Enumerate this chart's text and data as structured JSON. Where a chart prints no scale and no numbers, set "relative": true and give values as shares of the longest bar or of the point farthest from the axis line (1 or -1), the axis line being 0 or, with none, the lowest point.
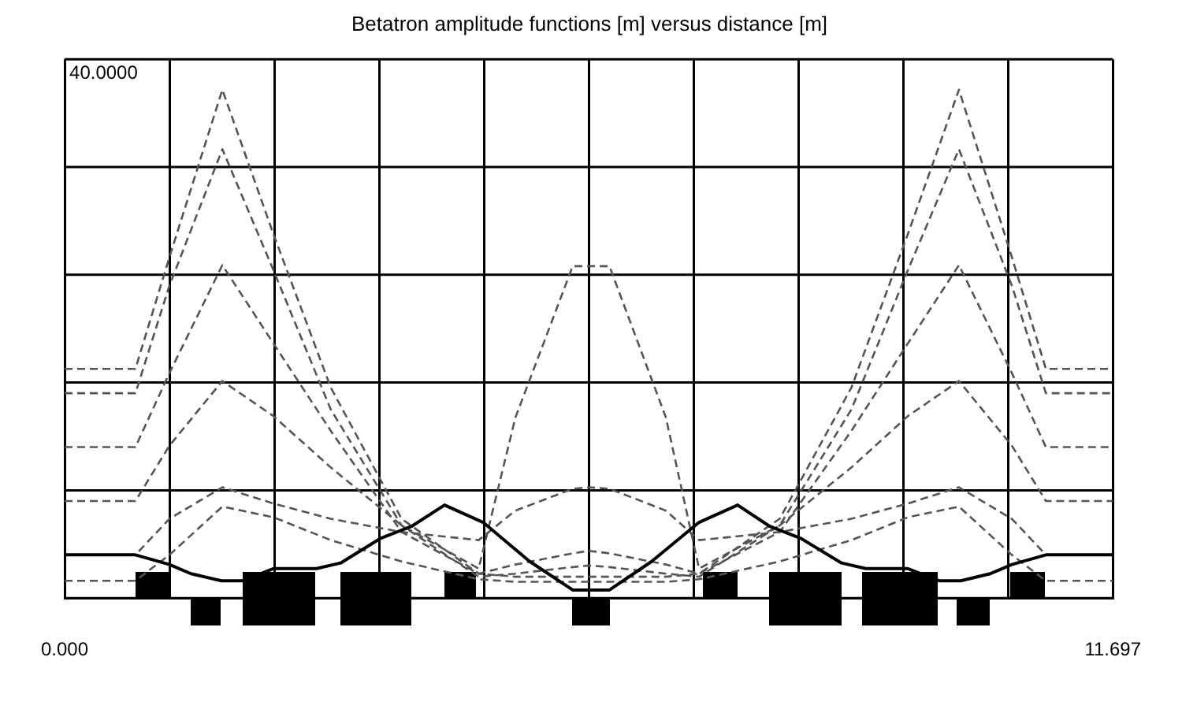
{
  "chart_data": {
    "type": "line",
    "title": "Betatron amplitude functions [m] versus distance [m]",
    "annotations": [
      "40.0000"
    ],
    "relative": true,
    "xlim": [
      0,
      11.697
    ],
    "xticks": [
      {
        "value": 0,
        "label": "0.000"
      },
      {
        "value": 1.1697,
        "label": null
      },
      {
        "value": 2.3394,
        "label": null
      },
      {
        "value": 3.5091,
        "label": null
      },
      {
        "value": 4.6788,
        "label": null
      },
      {
        "value": 5.8485,
        "label": null
      },
      {
        "value": 7.0182,
        "label": null
      },
      {
        "value": 8.1879,
        "label": null
      },
      {
        "value": 9.3576,
        "label": null
      },
      {
        "value": 10.5273,
        "label": null
      },
      {
        "value": 11.697,
        "label": "11.697"
      }
    ],
    "grid": true,
    "legend": false,
    "marker": "none",
    "series": [
      {
        "color": "#000000",
        "line_style": "solid",
        "x": [
          0,
          0.79,
          1.17,
          1.41,
          1.75,
          1.98,
          2.33,
          2.81,
          3.08,
          3.52,
          3.87,
          4.24,
          4.67,
          5.19,
          5.67,
          6.08,
          6.55,
          7.08,
          7.51,
          7.87,
          8.22,
          8.67,
          8.94,
          9.41,
          9.76,
          10.0,
          10.33,
          10.57,
          10.95,
          11.697
        ],
        "values": [
          0.085,
          0.085,
          0.066,
          0.048,
          0.034,
          0.034,
          0.058,
          0.058,
          0.069,
          0.117,
          0.141,
          0.183,
          0.149,
          0.072,
          0.016,
          0.016,
          0.072,
          0.149,
          0.183,
          0.141,
          0.117,
          0.069,
          0.058,
          0.058,
          0.034,
          0.034,
          0.048,
          0.066,
          0.085,
          0.085
        ]
      },
      {
        "color": "#555555",
        "line_style": "dashed",
        "x": [
          0,
          0.79,
          1.17,
          1.76,
          2.33,
          2.97,
          3.76,
          4.62,
          5.03,
          5.67,
          5.85,
          6.08,
          6.71,
          7.08,
          7.98,
          8.78,
          9.41,
          9.98,
          10.57,
          10.95,
          11.697
        ],
        "values": [
          0.451,
          0.451,
          0.671,
          1,
          0.716,
          0.414,
          0.156,
          0.048,
          0.042,
          0.042,
          0.042,
          0.042,
          0.042,
          0.048,
          0.156,
          0.414,
          0.716,
          1,
          0.671,
          0.451,
          0.451
        ]
      },
      {
        "color": "#555555",
        "line_style": "dashed",
        "x": [
          0,
          0.79,
          1.17,
          1.76,
          2.33,
          2.97,
          3.76,
          4.62,
          5.03,
          5.67,
          5.85,
          6.08,
          6.71,
          7.08,
          7.98,
          8.78,
          9.41,
          9.98,
          10.57,
          10.95,
          11.697
        ],
        "values": [
          0.403,
          0.403,
          0.615,
          0.883,
          0.645,
          0.371,
          0.143,
          0.042,
          0.048,
          0.061,
          0.064,
          0.061,
          0.048,
          0.042,
          0.143,
          0.371,
          0.645,
          0.883,
          0.615,
          0.403,
          0.403
        ]
      },
      {
        "color": "#555555",
        "line_style": "dashed",
        "x": [
          0,
          0.79,
          1.17,
          1.76,
          2.33,
          2.97,
          3.76,
          4.62,
          5.03,
          5.67,
          5.85,
          6.08,
          6.71,
          7.08,
          7.98,
          8.78,
          9.41,
          9.98,
          10.57,
          10.95,
          11.697
        ],
        "values": [
          0.297,
          0.297,
          0.443,
          0.655,
          0.501,
          0.329,
          0.13,
          0.048,
          0.066,
          0.088,
          0.093,
          0.088,
          0.066,
          0.048,
          0.13,
          0.329,
          0.501,
          0.655,
          0.443,
          0.297,
          0.297
        ]
      },
      {
        "color": "#555555",
        "line_style": "dashed",
        "x": [
          0,
          0.79,
          1.17,
          1.76,
          2.33,
          2.97,
          3.76,
          4.62,
          5.03,
          5.67,
          5.85,
          6.08,
          6.71,
          7.08,
          7.98,
          8.78,
          9.41,
          9.98,
          10.57,
          10.95,
          11.697
        ],
        "values": [
          0.191,
          0.191,
          0.3,
          0.427,
          0.358,
          0.257,
          0.143,
          0.058,
          0.355,
          0.653,
          0.653,
          0.653,
          0.355,
          0.058,
          0.143,
          0.257,
          0.358,
          0.427,
          0.3,
          0.191,
          0.191
        ]
      },
      {
        "color": "#555555",
        "line_style": "dashed",
        "x": [
          0,
          0.79,
          1.17,
          1.76,
          2.33,
          2.97,
          3.76,
          4.62,
          5.03,
          5.67,
          5.85,
          6.08,
          6.71,
          7.08,
          7.98,
          8.78,
          9.41,
          9.98,
          10.57,
          10.95,
          11.697
        ],
        "values": [
          0.085,
          0.085,
          0.156,
          0.218,
          0.186,
          0.156,
          0.13,
          0.114,
          0.172,
          0.215,
          0.218,
          0.215,
          0.172,
          0.114,
          0.13,
          0.156,
          0.186,
          0.218,
          0.156,
          0.085,
          0.085
        ]
      },
      {
        "color": "#555555",
        "line_style": "dashed",
        "x": [
          0,
          0.79,
          1.17,
          1.76,
          2.33,
          2.97,
          3.76,
          4.62,
          5.03,
          5.67,
          5.85,
          6.08,
          6.71,
          7.08,
          7.98,
          8.78,
          9.41,
          9.98,
          10.57,
          10.95,
          11.697
        ],
        "values": [
          0.034,
          0.034,
          0.085,
          0.18,
          0.159,
          0.114,
          0.072,
          0.037,
          0.032,
          0.032,
          0.032,
          0.032,
          0.032,
          0.037,
          0.072,
          0.114,
          0.159,
          0.18,
          0.085,
          0.034,
          0.034
        ]
      }
    ]
  }
}
